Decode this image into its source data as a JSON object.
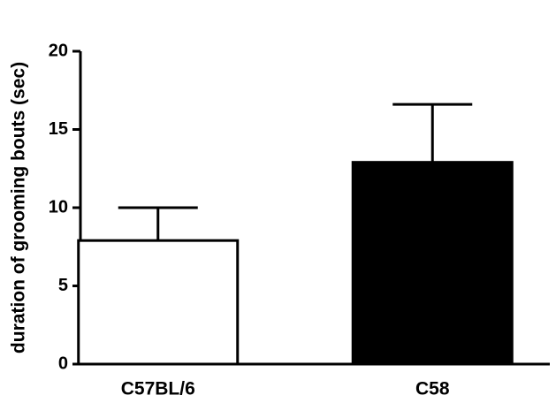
{
  "chart_data": {
    "type": "bar",
    "ylabel": "duration of grooming bouts (sec)",
    "categories": [
      "C57BL/6",
      "C58"
    ],
    "values": [
      7.9,
      12.9
    ],
    "errors": [
      2.1,
      3.7
    ],
    "colors": [
      "#ffffff",
      "#000000"
    ],
    "ylim": [
      0,
      20
    ],
    "yticks": [
      0,
      5,
      10,
      15,
      20
    ]
  }
}
